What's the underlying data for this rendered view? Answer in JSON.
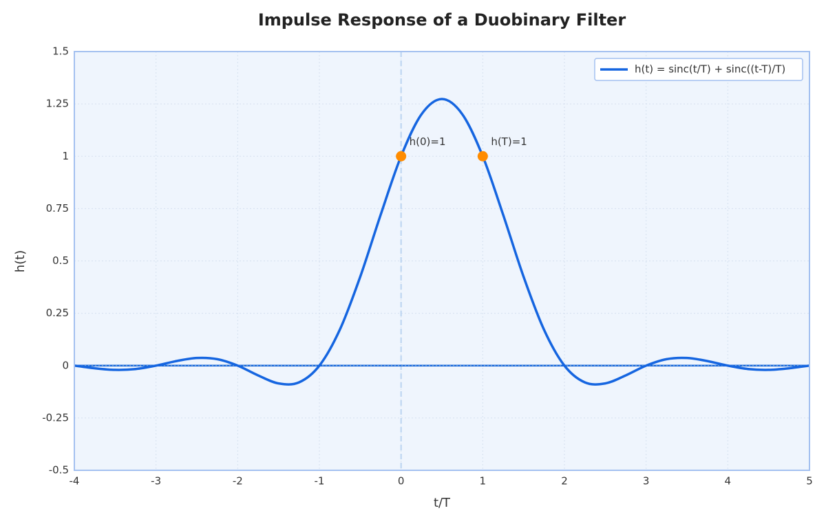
{
  "chart_data": {
    "type": "line",
    "title": "Impulse Response of a Duobinary Filter",
    "xlabel": "t/T",
    "ylabel": "h(t)",
    "x": [
      -4,
      -3.75,
      -3.5,
      -3.25,
      -3,
      -2.75,
      -2.5,
      -2.25,
      -2,
      -1.75,
      -1.5,
      -1.25,
      -1,
      -0.75,
      -0.5,
      -0.25,
      0,
      0.25,
      0.5,
      0.75,
      1,
      1.25,
      1.5,
      1.75,
      2,
      2.25,
      2.5,
      2.75,
      3,
      3.25,
      3.5,
      3.75,
      4,
      4.25,
      4.5,
      4.75,
      5
    ],
    "series": [
      {
        "name": "h(t) = sinc(t/T) + sinc((t-T)/T)",
        "color": "#1565e0",
        "values": [
          0,
          -0.0126,
          -0.0202,
          -0.0163,
          0,
          0.0218,
          0.0364,
          0.0308,
          0,
          -0.0468,
          -0.0849,
          -0.08,
          0,
          0.1715,
          0.4244,
          0.7203,
          1,
          1.2004,
          1.2732,
          1.2004,
          1,
          0.7203,
          0.4244,
          0.1715,
          0,
          -0.08,
          -0.0849,
          -0.0468,
          0,
          0.0308,
          0.0364,
          0.0218,
          0,
          -0.0163,
          -0.0202,
          -0.0126,
          0
        ]
      }
    ],
    "markers": {
      "x": [
        0,
        1
      ],
      "values": [
        1,
        1
      ],
      "labels": [
        "h(0)=1",
        "h(T)=1"
      ],
      "color": "#ff8c00"
    },
    "hline": 0,
    "vline": 0,
    "xlim": [
      -4,
      5
    ],
    "ylim": [
      -0.5,
      1.5
    ],
    "xticks": [
      -4,
      -3,
      -2,
      -1,
      0,
      1,
      2,
      3,
      4,
      5
    ],
    "yticks": [
      -0.5,
      -0.25,
      0,
      0.25,
      0.5,
      0.75,
      1,
      1.25,
      1.5
    ],
    "grid": true,
    "legend": "upper right"
  }
}
